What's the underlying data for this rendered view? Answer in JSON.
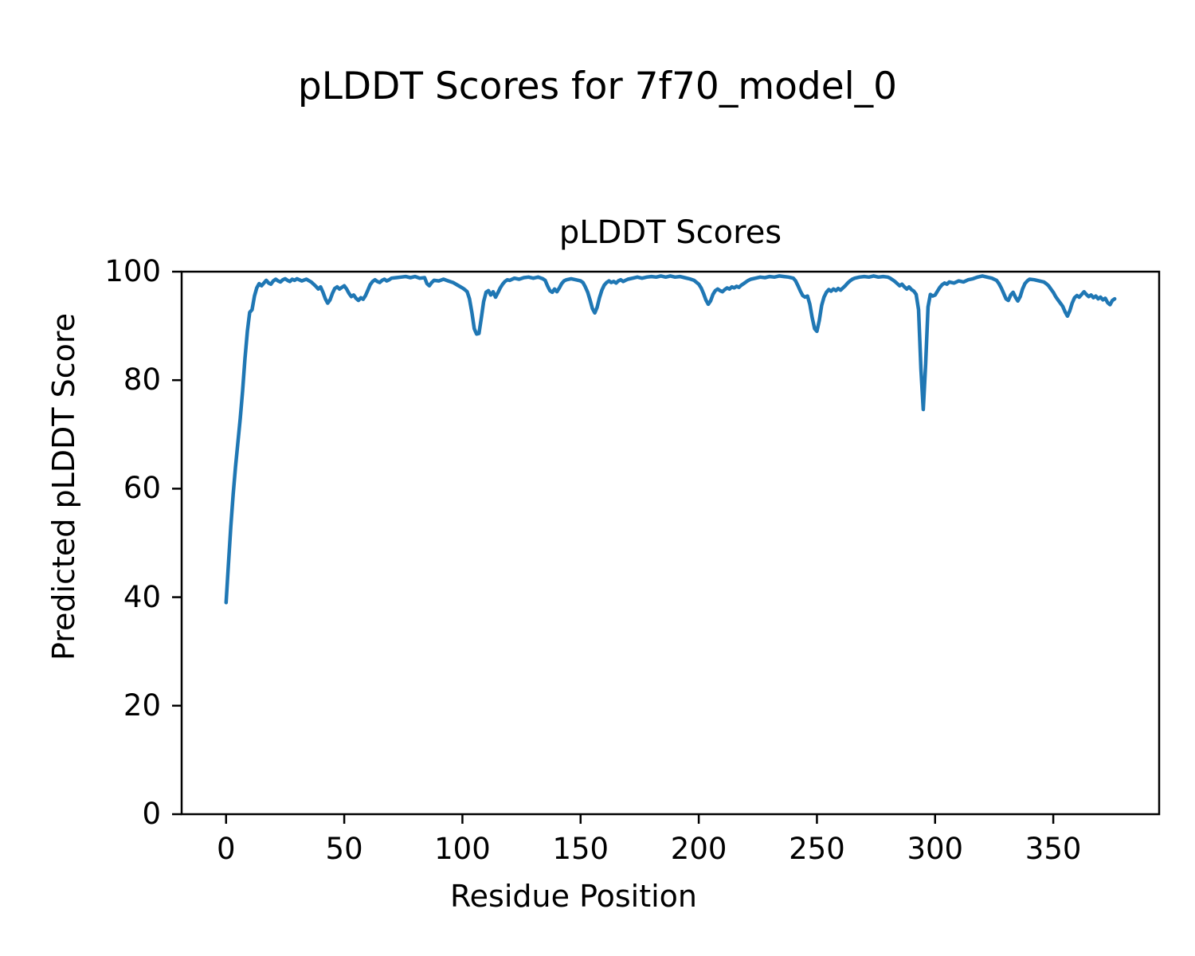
{
  "figure": {
    "title": "pLDDT Scores for 7f70_model_0"
  },
  "axes": {
    "title": "pLDDT Scores",
    "xlabel": "Residue Position",
    "ylabel": "Predicted pLDDT Score"
  },
  "chart_data": {
    "type": "line",
    "title": "pLDDT Scores",
    "figure_title": "pLDDT Scores for 7f70_model_0",
    "xlabel": "Residue Position",
    "ylabel": "Predicted pLDDT Score",
    "xlim": [
      -18.8,
      394.8
    ],
    "ylim": [
      0,
      100
    ],
    "x_ticks": [
      0,
      50,
      100,
      150,
      200,
      250,
      300,
      350
    ],
    "y_ticks": [
      0,
      20,
      40,
      60,
      80,
      100
    ],
    "grid": false,
    "legend_position": "none",
    "line_color": "#1f77b4",
    "series_name": "pLDDT",
    "points": [
      [
        0,
        39
      ],
      [
        1,
        46
      ],
      [
        2,
        53
      ],
      [
        3,
        59
      ],
      [
        4,
        64
      ],
      [
        5,
        68.5
      ],
      [
        6,
        73
      ],
      [
        7,
        78
      ],
      [
        8,
        84
      ],
      [
        9,
        89
      ],
      [
        10,
        92.5
      ],
      [
        11,
        93
      ],
      [
        12,
        95.5
      ],
      [
        13,
        97
      ],
      [
        14,
        97.8
      ],
      [
        15,
        97.4
      ],
      [
        16,
        97.9
      ],
      [
        17,
        98.4
      ],
      [
        18,
        97.9
      ],
      [
        19,
        97.7
      ],
      [
        20,
        98.3
      ],
      [
        21,
        98.6
      ],
      [
        22,
        98.3
      ],
      [
        23,
        98.1
      ],
      [
        24,
        98.5
      ],
      [
        25,
        98.7
      ],
      [
        26,
        98.4
      ],
      [
        27,
        98.2
      ],
      [
        28,
        98.6
      ],
      [
        29,
        98.4
      ],
      [
        30,
        98.7
      ],
      [
        32,
        98.3
      ],
      [
        34,
        98.6
      ],
      [
        36,
        98.1
      ],
      [
        38,
        97.3
      ],
      [
        39,
        96.8
      ],
      [
        40,
        97.2
      ],
      [
        41,
        96.2
      ],
      [
        42,
        95
      ],
      [
        43,
        94.2
      ],
      [
        44,
        94.8
      ],
      [
        45,
        96
      ],
      [
        46,
        96.9
      ],
      [
        47,
        97.2
      ],
      [
        48,
        96.8
      ],
      [
        49,
        97.1
      ],
      [
        50,
        97.4
      ],
      [
        51,
        96.8
      ],
      [
        52,
        96
      ],
      [
        53,
        95.4
      ],
      [
        54,
        95.7
      ],
      [
        55,
        95.1
      ],
      [
        56,
        94.7
      ],
      [
        57,
        95.2
      ],
      [
        58,
        94.9
      ],
      [
        59,
        95.6
      ],
      [
        60,
        96.6
      ],
      [
        61,
        97.6
      ],
      [
        62,
        98.2
      ],
      [
        63,
        98.5
      ],
      [
        64,
        98.2
      ],
      [
        65,
        98
      ],
      [
        66,
        98.4
      ],
      [
        67,
        98.6
      ],
      [
        68,
        98.3
      ],
      [
        69,
        98.5
      ],
      [
        70,
        98.8
      ],
      [
        72,
        98.9
      ],
      [
        74,
        99
      ],
      [
        76,
        99.1
      ],
      [
        78,
        98.9
      ],
      [
        80,
        99.1
      ],
      [
        82,
        98.8
      ],
      [
        84,
        98.9
      ],
      [
        85,
        97.8
      ],
      [
        86,
        97.4
      ],
      [
        87,
        98
      ],
      [
        88,
        98.4
      ],
      [
        90,
        98.3
      ],
      [
        92,
        98.6
      ],
      [
        94,
        98.3
      ],
      [
        96,
        98
      ],
      [
        98,
        97.5
      ],
      [
        100,
        97
      ],
      [
        101,
        96.7
      ],
      [
        102,
        96.3
      ],
      [
        103,
        95
      ],
      [
        104,
        92.5
      ],
      [
        105,
        89.5
      ],
      [
        106,
        88.5
      ],
      [
        107,
        88.6
      ],
      [
        108,
        91.5
      ],
      [
        109,
        94.5
      ],
      [
        110,
        96.2
      ],
      [
        111,
        96.5
      ],
      [
        112,
        95.7
      ],
      [
        113,
        96.3
      ],
      [
        114,
        95.3
      ],
      [
        115,
        96.1
      ],
      [
        116,
        97
      ],
      [
        117,
        97.7
      ],
      [
        118,
        98.2
      ],
      [
        119,
        98.5
      ],
      [
        120,
        98.4
      ],
      [
        122,
        98.8
      ],
      [
        124,
        98.6
      ],
      [
        126,
        98.9
      ],
      [
        128,
        99
      ],
      [
        130,
        98.8
      ],
      [
        132,
        99
      ],
      [
        134,
        98.7
      ],
      [
        135,
        98.4
      ],
      [
        136,
        97.4
      ],
      [
        137,
        96.5
      ],
      [
        138,
        96.2
      ],
      [
        139,
        96.8
      ],
      [
        140,
        96.3
      ],
      [
        141,
        97
      ],
      [
        142,
        97.8
      ],
      [
        143,
        98.3
      ],
      [
        144,
        98.5
      ],
      [
        146,
        98.7
      ],
      [
        148,
        98.5
      ],
      [
        150,
        98.3
      ],
      [
        151,
        98
      ],
      [
        152,
        97.2
      ],
      [
        153,
        96.2
      ],
      [
        154,
        94.8
      ],
      [
        155,
        93.2
      ],
      [
        156,
        92.4
      ],
      [
        157,
        93.4
      ],
      [
        158,
        95.2
      ],
      [
        159,
        96.6
      ],
      [
        160,
        97.5
      ],
      [
        161,
        98
      ],
      [
        162,
        98.3
      ],
      [
        163,
        98
      ],
      [
        164,
        98.2
      ],
      [
        165,
        97.9
      ],
      [
        166,
        98.3
      ],
      [
        167,
        98.5
      ],
      [
        168,
        98.2
      ],
      [
        169,
        98.4
      ],
      [
        170,
        98.6
      ],
      [
        172,
        98.8
      ],
      [
        174,
        99
      ],
      [
        176,
        98.8
      ],
      [
        178,
        99
      ],
      [
        180,
        99.1
      ],
      [
        182,
        99
      ],
      [
        184,
        99.2
      ],
      [
        186,
        99
      ],
      [
        188,
        99.2
      ],
      [
        190,
        99
      ],
      [
        192,
        99.1
      ],
      [
        194,
        98.9
      ],
      [
        196,
        98.7
      ],
      [
        198,
        98.4
      ],
      [
        200,
        97.7
      ],
      [
        201,
        97
      ],
      [
        202,
        96
      ],
      [
        203,
        94.8
      ],
      [
        204,
        94
      ],
      [
        205,
        94.6
      ],
      [
        206,
        95.8
      ],
      [
        207,
        96.5
      ],
      [
        208,
        96.8
      ],
      [
        209,
        96.5
      ],
      [
        210,
        96.3
      ],
      [
        211,
        96.7
      ],
      [
        212,
        97
      ],
      [
        213,
        96.8
      ],
      [
        214,
        97.2
      ],
      [
        215,
        97
      ],
      [
        216,
        97.3
      ],
      [
        217,
        97.1
      ],
      [
        218,
        97.5
      ],
      [
        219,
        97.8
      ],
      [
        220,
        98.1
      ],
      [
        221,
        98.4
      ],
      [
        222,
        98.6
      ],
      [
        224,
        98.8
      ],
      [
        226,
        99
      ],
      [
        228,
        98.9
      ],
      [
        230,
        99.1
      ],
      [
        232,
        99
      ],
      [
        234,
        99.2
      ],
      [
        236,
        99.1
      ],
      [
        238,
        99
      ],
      [
        240,
        98.8
      ],
      [
        241,
        98.3
      ],
      [
        242,
        97.4
      ],
      [
        243,
        96.4
      ],
      [
        244,
        95.6
      ],
      [
        245,
        95.3
      ],
      [
        246,
        95.5
      ],
      [
        247,
        94
      ],
      [
        248,
        91.5
      ],
      [
        249,
        89.5
      ],
      [
        250,
        89
      ],
      [
        251,
        91
      ],
      [
        252,
        93.8
      ],
      [
        253,
        95.3
      ],
      [
        254,
        96.2
      ],
      [
        255,
        96.7
      ],
      [
        256,
        96.4
      ],
      [
        257,
        96.8
      ],
      [
        258,
        96.5
      ],
      [
        259,
        96.9
      ],
      [
        260,
        96.6
      ],
      [
        261,
        97
      ],
      [
        262,
        97.4
      ],
      [
        263,
        97.9
      ],
      [
        264,
        98.3
      ],
      [
        265,
        98.6
      ],
      [
        266,
        98.8
      ],
      [
        268,
        99
      ],
      [
        270,
        99.1
      ],
      [
        272,
        99
      ],
      [
        274,
        99.2
      ],
      [
        276,
        99
      ],
      [
        278,
        99.1
      ],
      [
        280,
        99
      ],
      [
        281,
        98.8
      ],
      [
        282,
        98.5
      ],
      [
        283,
        98.2
      ],
      [
        284,
        97.8
      ],
      [
        285,
        97.4
      ],
      [
        286,
        97.7
      ],
      [
        287,
        97.2
      ],
      [
        288,
        96.8
      ],
      [
        289,
        97.2
      ],
      [
        290,
        96.7
      ],
      [
        291,
        96.4
      ],
      [
        292,
        95.8
      ],
      [
        293,
        93
      ],
      [
        294,
        82
      ],
      [
        295,
        74.6
      ],
      [
        296,
        83
      ],
      [
        297,
        93.5
      ],
      [
        298,
        95.8
      ],
      [
        299,
        95.5
      ],
      [
        300,
        95.7
      ],
      [
        301,
        96.4
      ],
      [
        302,
        97.1
      ],
      [
        303,
        97.6
      ],
      [
        304,
        97.9
      ],
      [
        305,
        97.7
      ],
      [
        306,
        98.1
      ],
      [
        308,
        97.9
      ],
      [
        310,
        98.3
      ],
      [
        312,
        98.1
      ],
      [
        314,
        98.5
      ],
      [
        316,
        98.7
      ],
      [
        318,
        99
      ],
      [
        320,
        99.2
      ],
      [
        322,
        99
      ],
      [
        324,
        98.8
      ],
      [
        326,
        98.4
      ],
      [
        327,
        97.8
      ],
      [
        328,
        97
      ],
      [
        329,
        96
      ],
      [
        330,
        95
      ],
      [
        331,
        94.7
      ],
      [
        332,
        95.7
      ],
      [
        333,
        96.2
      ],
      [
        334,
        95.3
      ],
      [
        335,
        94.6
      ],
      [
        336,
        95.4
      ],
      [
        337,
        96.8
      ],
      [
        338,
        97.8
      ],
      [
        339,
        98.3
      ],
      [
        340,
        98.6
      ],
      [
        342,
        98.5
      ],
      [
        344,
        98.3
      ],
      [
        346,
        98.1
      ],
      [
        347,
        97.8
      ],
      [
        348,
        97.4
      ],
      [
        349,
        96.8
      ],
      [
        350,
        96.2
      ],
      [
        351,
        95.4
      ],
      [
        352,
        94.8
      ],
      [
        353,
        94.2
      ],
      [
        354,
        93.6
      ],
      [
        355,
        92.6
      ],
      [
        356,
        91.8
      ],
      [
        357,
        92.8
      ],
      [
        358,
        94.2
      ],
      [
        359,
        95.2
      ],
      [
        360,
        95.6
      ],
      [
        361,
        95.3
      ],
      [
        362,
        95.8
      ],
      [
        363,
        96.3
      ],
      [
        364,
        95.8
      ],
      [
        365,
        95.4
      ],
      [
        366,
        95.7
      ],
      [
        367,
        95.2
      ],
      [
        368,
        95.5
      ],
      [
        369,
        95
      ],
      [
        370,
        95.3
      ],
      [
        371,
        94.8
      ],
      [
        372,
        95.1
      ],
      [
        373,
        94.3
      ],
      [
        374,
        93.9
      ],
      [
        375,
        94.7
      ],
      [
        376,
        95
      ]
    ]
  }
}
